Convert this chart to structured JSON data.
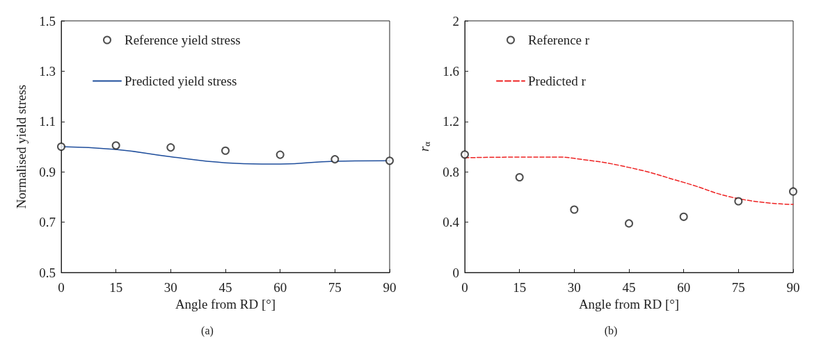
{
  "chart_data": [
    {
      "type": "scatter",
      "xlabel": "Angle from RD [°]",
      "ylabel": "Normalised yield stress",
      "annotations": [
        "(a)"
      ],
      "xlim": [
        0,
        90
      ],
      "xticks": [
        0,
        15,
        30,
        45,
        60,
        75,
        90
      ],
      "ylim": [
        0.5,
        1.5
      ],
      "yticks": [
        0.5,
        0.7,
        0.9,
        1.1,
        1.3,
        1.5
      ],
      "grid": false,
      "legend": "top left",
      "series": [
        {
          "name": "Reference yield stress",
          "marker": "circle",
          "color": "#222222",
          "x": [
            0,
            15,
            30,
            45,
            60,
            75,
            90
          ],
          "values": [
            1.0,
            1.005,
            0.997,
            0.984,
            0.968,
            0.95,
            0.944
          ]
        },
        {
          "name": "Predicted yield stress",
          "type": "line",
          "marker": "none",
          "line_style": "solid",
          "color": "#1f4e9c",
          "x": [
            0,
            15,
            30,
            45,
            55,
            60,
            75,
            90
          ],
          "values": [
            1.0,
            0.989,
            0.96,
            0.936,
            0.931,
            0.931,
            0.942,
            0.944
          ]
        }
      ]
    },
    {
      "type": "scatter",
      "xlabel": "Angle from RD [°]",
      "ylabel": "r$_{α}$",
      "annotations": [
        "(b)"
      ],
      "xlim": [
        0,
        90
      ],
      "xticks": [
        0,
        15,
        30,
        45,
        60,
        75,
        90
      ],
      "ylim": [
        0,
        2
      ],
      "yticks": [
        0,
        0.4,
        0.8,
        1.2,
        1.6,
        2
      ],
      "grid": false,
      "legend": "top left",
      "series": [
        {
          "name": "Reference r",
          "marker": "circle",
          "color": "#222222",
          "x": [
            0,
            15,
            30,
            45,
            60,
            75,
            90
          ],
          "values": [
            0.938,
            0.757,
            0.5,
            0.39,
            0.443,
            0.566,
            0.644
          ]
        },
        {
          "name": "Predicted r",
          "type": "line",
          "marker": "none",
          "line_style": "dashed",
          "color": "#ee2222",
          "x": [
            0,
            15,
            25,
            30,
            45,
            60,
            75,
            90
          ],
          "values": [
            0.912,
            0.917,
            0.917,
            0.907,
            0.835,
            0.716,
            0.587,
            0.541
          ]
        }
      ]
    }
  ]
}
